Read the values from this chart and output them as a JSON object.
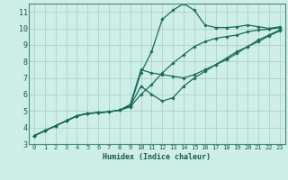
{
  "title": "",
  "xlabel": "Humidex (Indice chaleur)",
  "ylabel": "",
  "bg_color": "#ceeee8",
  "grid_color": "#b0d0cc",
  "line_color": "#1a6b5a",
  "spine_color": "#4a8a7a",
  "xlim": [
    -0.5,
    23.5
  ],
  "ylim": [
    3,
    11.5
  ],
  "yticks": [
    3,
    4,
    5,
    6,
    7,
    8,
    9,
    10,
    11
  ],
  "xticks": [
    0,
    1,
    2,
    3,
    4,
    5,
    6,
    7,
    8,
    9,
    10,
    11,
    12,
    13,
    14,
    15,
    16,
    17,
    18,
    19,
    20,
    21,
    22,
    23
  ],
  "lines": [
    {
      "x": [
        0,
        1,
        2,
        3,
        4,
        5,
        6,
        7,
        8,
        9,
        10,
        11,
        12,
        13,
        14,
        15,
        16,
        17,
        18,
        19,
        20,
        21,
        22,
        23
      ],
      "y": [
        3.5,
        3.8,
        4.1,
        4.4,
        4.7,
        4.85,
        4.9,
        4.95,
        5.05,
        5.3,
        7.3,
        8.6,
        10.55,
        11.1,
        11.5,
        11.1,
        10.2,
        10.05,
        10.05,
        10.1,
        10.2,
        10.1,
        10.0,
        10.1
      ]
    },
    {
      "x": [
        0,
        1,
        2,
        3,
        4,
        5,
        6,
        7,
        8,
        9,
        10,
        11,
        12,
        13,
        14,
        15,
        16,
        17,
        18,
        19,
        20,
        21,
        22,
        23
      ],
      "y": [
        3.5,
        3.8,
        4.1,
        4.4,
        4.7,
        4.85,
        4.9,
        4.95,
        5.05,
        5.25,
        6.0,
        6.6,
        7.3,
        7.9,
        8.4,
        8.9,
        9.2,
        9.4,
        9.5,
        9.6,
        9.8,
        9.9,
        9.95,
        10.05
      ]
    },
    {
      "x": [
        0,
        1,
        2,
        3,
        4,
        5,
        6,
        7,
        8,
        9,
        10,
        11,
        12,
        13,
        14,
        15,
        16,
        17,
        18,
        19,
        20,
        21,
        22,
        23
      ],
      "y": [
        3.5,
        3.8,
        4.1,
        4.4,
        4.7,
        4.85,
        4.9,
        4.95,
        5.05,
        5.4,
        7.5,
        7.3,
        7.2,
        7.1,
        7.0,
        7.2,
        7.5,
        7.8,
        8.1,
        8.5,
        8.9,
        9.3,
        9.6,
        9.9
      ]
    },
    {
      "x": [
        0,
        1,
        2,
        3,
        4,
        5,
        6,
        7,
        8,
        9,
        10,
        11,
        12,
        13,
        14,
        15,
        16,
        17,
        18,
        19,
        20,
        21,
        22,
        23
      ],
      "y": [
        3.5,
        3.8,
        4.1,
        4.4,
        4.7,
        4.85,
        4.9,
        4.95,
        5.05,
        5.3,
        6.5,
        6.0,
        5.6,
        5.8,
        6.5,
        7.0,
        7.4,
        7.8,
        8.2,
        8.6,
        8.9,
        9.2,
        9.55,
        9.85
      ]
    }
  ]
}
